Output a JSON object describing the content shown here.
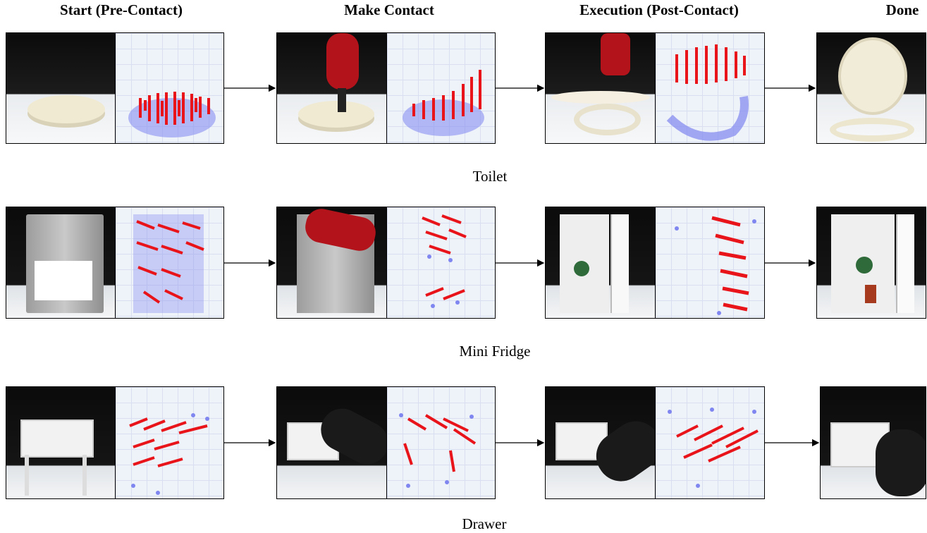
{
  "columns": [
    {
      "key": "start",
      "title": "Start (Pre-Contact)"
    },
    {
      "key": "contact",
      "title": "Make Contact"
    },
    {
      "key": "execution",
      "title": "Execution (Post-Contact)"
    },
    {
      "key": "done",
      "title": "Done"
    }
  ],
  "rows": [
    {
      "key": "toilet",
      "label": "Toilet"
    },
    {
      "key": "fridge",
      "label": "Mini Fridge"
    },
    {
      "key": "drawer",
      "label": "Drawer"
    }
  ],
  "colors": {
    "flow_vector": "#e8141a",
    "point": "#7f86f0",
    "background_dark": "#111111",
    "grid_bg": "#eef2f9"
  }
}
